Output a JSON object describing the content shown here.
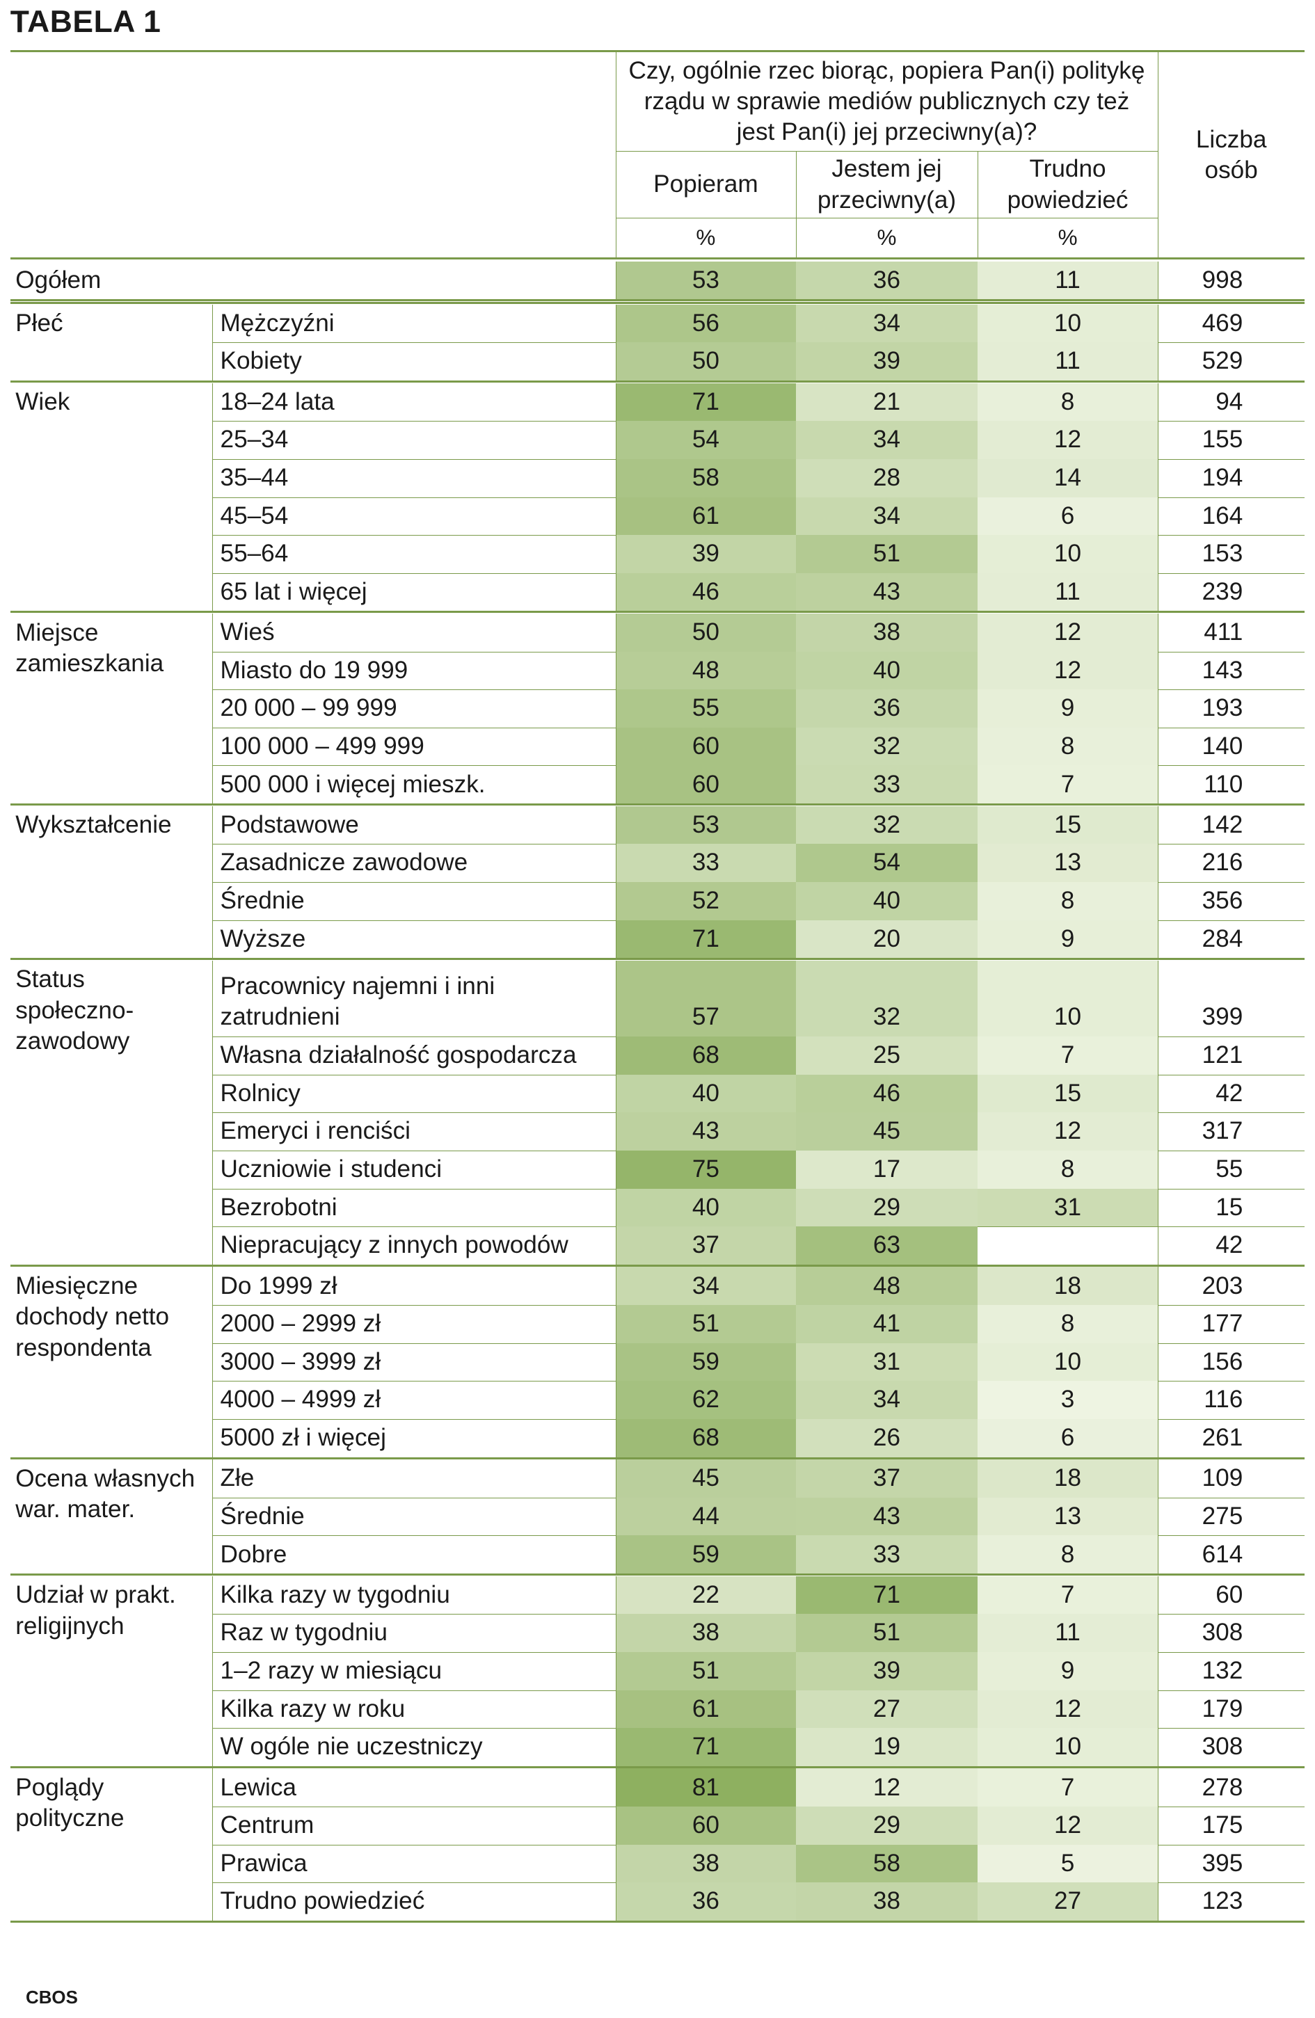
{
  "title": "TABELA 1",
  "footer": "CBOS",
  "header": {
    "question": "Czy, ogólnie rzec biorąc, popiera Pan(i) politykę rządu w sprawie mediów publicznych czy też jest Pan(i) jej przeciwny(a)?",
    "columns": [
      "Popieram",
      "Jestem jej przeciwny(a)",
      "Trudno powiedzieć"
    ],
    "units": [
      "%",
      "%",
      "%"
    ],
    "count_header": "Liczba osób"
  },
  "colors": {
    "rule": "#7a9a4a",
    "heat_low": "#eef4e2",
    "heat_high": "#8eb060"
  },
  "groups": [
    {
      "label": "Ogółem",
      "rows": [
        {
          "label": "",
          "values": [
            53,
            36,
            11
          ],
          "n": 998
        }
      ]
    },
    {
      "label": "Płeć",
      "rows": [
        {
          "label": "Mężczyźni",
          "values": [
            56,
            34,
            10
          ],
          "n": 469
        },
        {
          "label": "Kobiety",
          "values": [
            50,
            39,
            11
          ],
          "n": 529
        }
      ]
    },
    {
      "label": "Wiek",
      "rows": [
        {
          "label": "18–24 lata",
          "values": [
            71,
            21,
            8
          ],
          "n": 94
        },
        {
          "label": "25–34",
          "values": [
            54,
            34,
            12
          ],
          "n": 155
        },
        {
          "label": "35–44",
          "values": [
            58,
            28,
            14
          ],
          "n": 194
        },
        {
          "label": "45–54",
          "values": [
            61,
            34,
            6
          ],
          "n": 164
        },
        {
          "label": "55–64",
          "values": [
            39,
            51,
            10
          ],
          "n": 153
        },
        {
          "label": "65 lat i więcej",
          "values": [
            46,
            43,
            11
          ],
          "n": 239
        }
      ]
    },
    {
      "label": "Miejsce zamieszkania",
      "rows": [
        {
          "label": "Wieś",
          "values": [
            50,
            38,
            12
          ],
          "n": 411
        },
        {
          "label": "Miasto do 19 999",
          "values": [
            48,
            40,
            12
          ],
          "n": 143
        },
        {
          "label": "20 000 – 99 999",
          "values": [
            55,
            36,
            9
          ],
          "n": 193
        },
        {
          "label": "100 000 – 499 999",
          "values": [
            60,
            32,
            8
          ],
          "n": 140
        },
        {
          "label": "500 000 i więcej mieszk.",
          "values": [
            60,
            33,
            7
          ],
          "n": 110
        }
      ]
    },
    {
      "label": "Wykształcenie",
      "rows": [
        {
          "label": "Podstawowe",
          "values": [
            53,
            32,
            15
          ],
          "n": 142
        },
        {
          "label": "Zasadnicze zawodowe",
          "values": [
            33,
            54,
            13
          ],
          "n": 216
        },
        {
          "label": "Średnie",
          "values": [
            52,
            40,
            8
          ],
          "n": 356
        },
        {
          "label": "Wyższe",
          "values": [
            71,
            20,
            9
          ],
          "n": 284
        }
      ]
    },
    {
      "label": "Status społeczno-\n zawodowy",
      "rows": [
        {
          "label": "Pracownicy najemni i inni zatrudnieni",
          "values": [
            57,
            32,
            10
          ],
          "n": 399
        },
        {
          "label": "Własna działalność gospodarcza",
          "values": [
            68,
            25,
            7
          ],
          "n": 121
        },
        {
          "label": "Rolnicy",
          "values": [
            40,
            46,
            15
          ],
          "n": 42
        },
        {
          "label": "Emeryci i renciści",
          "values": [
            43,
            45,
            12
          ],
          "n": 317
        },
        {
          "label": "Uczniowie i studenci",
          "values": [
            75,
            17,
            8
          ],
          "n": 55
        },
        {
          "label": "Bezrobotni",
          "values": [
            40,
            29,
            31
          ],
          "n": 15
        },
        {
          "label": "Niepracujący z innych powodów",
          "values": [
            37,
            63,
            null
          ],
          "n": 42
        }
      ]
    },
    {
      "label": "Miesięczne dochody netto respondenta",
      "rows": [
        {
          "label": "Do 1999 zł",
          "values": [
            34,
            48,
            18
          ],
          "n": 203
        },
        {
          "label": "2000 – 2999 zł",
          "values": [
            51,
            41,
            8
          ],
          "n": 177
        },
        {
          "label": "3000 – 3999 zł",
          "values": [
            59,
            31,
            10
          ],
          "n": 156
        },
        {
          "label": "4000 – 4999 zł",
          "values": [
            62,
            34,
            3
          ],
          "n": 116
        },
        {
          "label": "5000 zł i więcej",
          "values": [
            68,
            26,
            6
          ],
          "n": 261
        }
      ]
    },
    {
      "label": "Ocena własnych war. mater.",
      "rows": [
        {
          "label": "Złe",
          "values": [
            45,
            37,
            18
          ],
          "n": 109
        },
        {
          "label": "Średnie",
          "values": [
            44,
            43,
            13
          ],
          "n": 275
        },
        {
          "label": "Dobre",
          "values": [
            59,
            33,
            8
          ],
          "n": 614
        }
      ]
    },
    {
      "label": "Udział w prakt. religijnych",
      "rows": [
        {
          "label": "Kilka razy w tygodniu",
          "values": [
            22,
            71,
            7
          ],
          "n": 60
        },
        {
          "label": "Raz w tygodniu",
          "values": [
            38,
            51,
            11
          ],
          "n": 308
        },
        {
          "label": "1–2 razy w miesiącu",
          "values": [
            51,
            39,
            9
          ],
          "n": 132
        },
        {
          "label": "Kilka razy w roku",
          "values": [
            61,
            27,
            12
          ],
          "n": 179
        },
        {
          "label": "W ogóle nie uczestniczy",
          "values": [
            71,
            19,
            10
          ],
          "n": 308
        }
      ]
    },
    {
      "label": "Poglądy polityczne",
      "rows": [
        {
          "label": "Lewica",
          "values": [
            81,
            12,
            7
          ],
          "n": 278
        },
        {
          "label": "Centrum",
          "values": [
            60,
            29,
            12
          ],
          "n": 175
        },
        {
          "label": "Prawica",
          "values": [
            38,
            58,
            5
          ],
          "n": 395
        },
        {
          "label": "Trudno powiedzieć",
          "values": [
            36,
            38,
            27
          ],
          "n": 123
        }
      ]
    }
  ]
}
